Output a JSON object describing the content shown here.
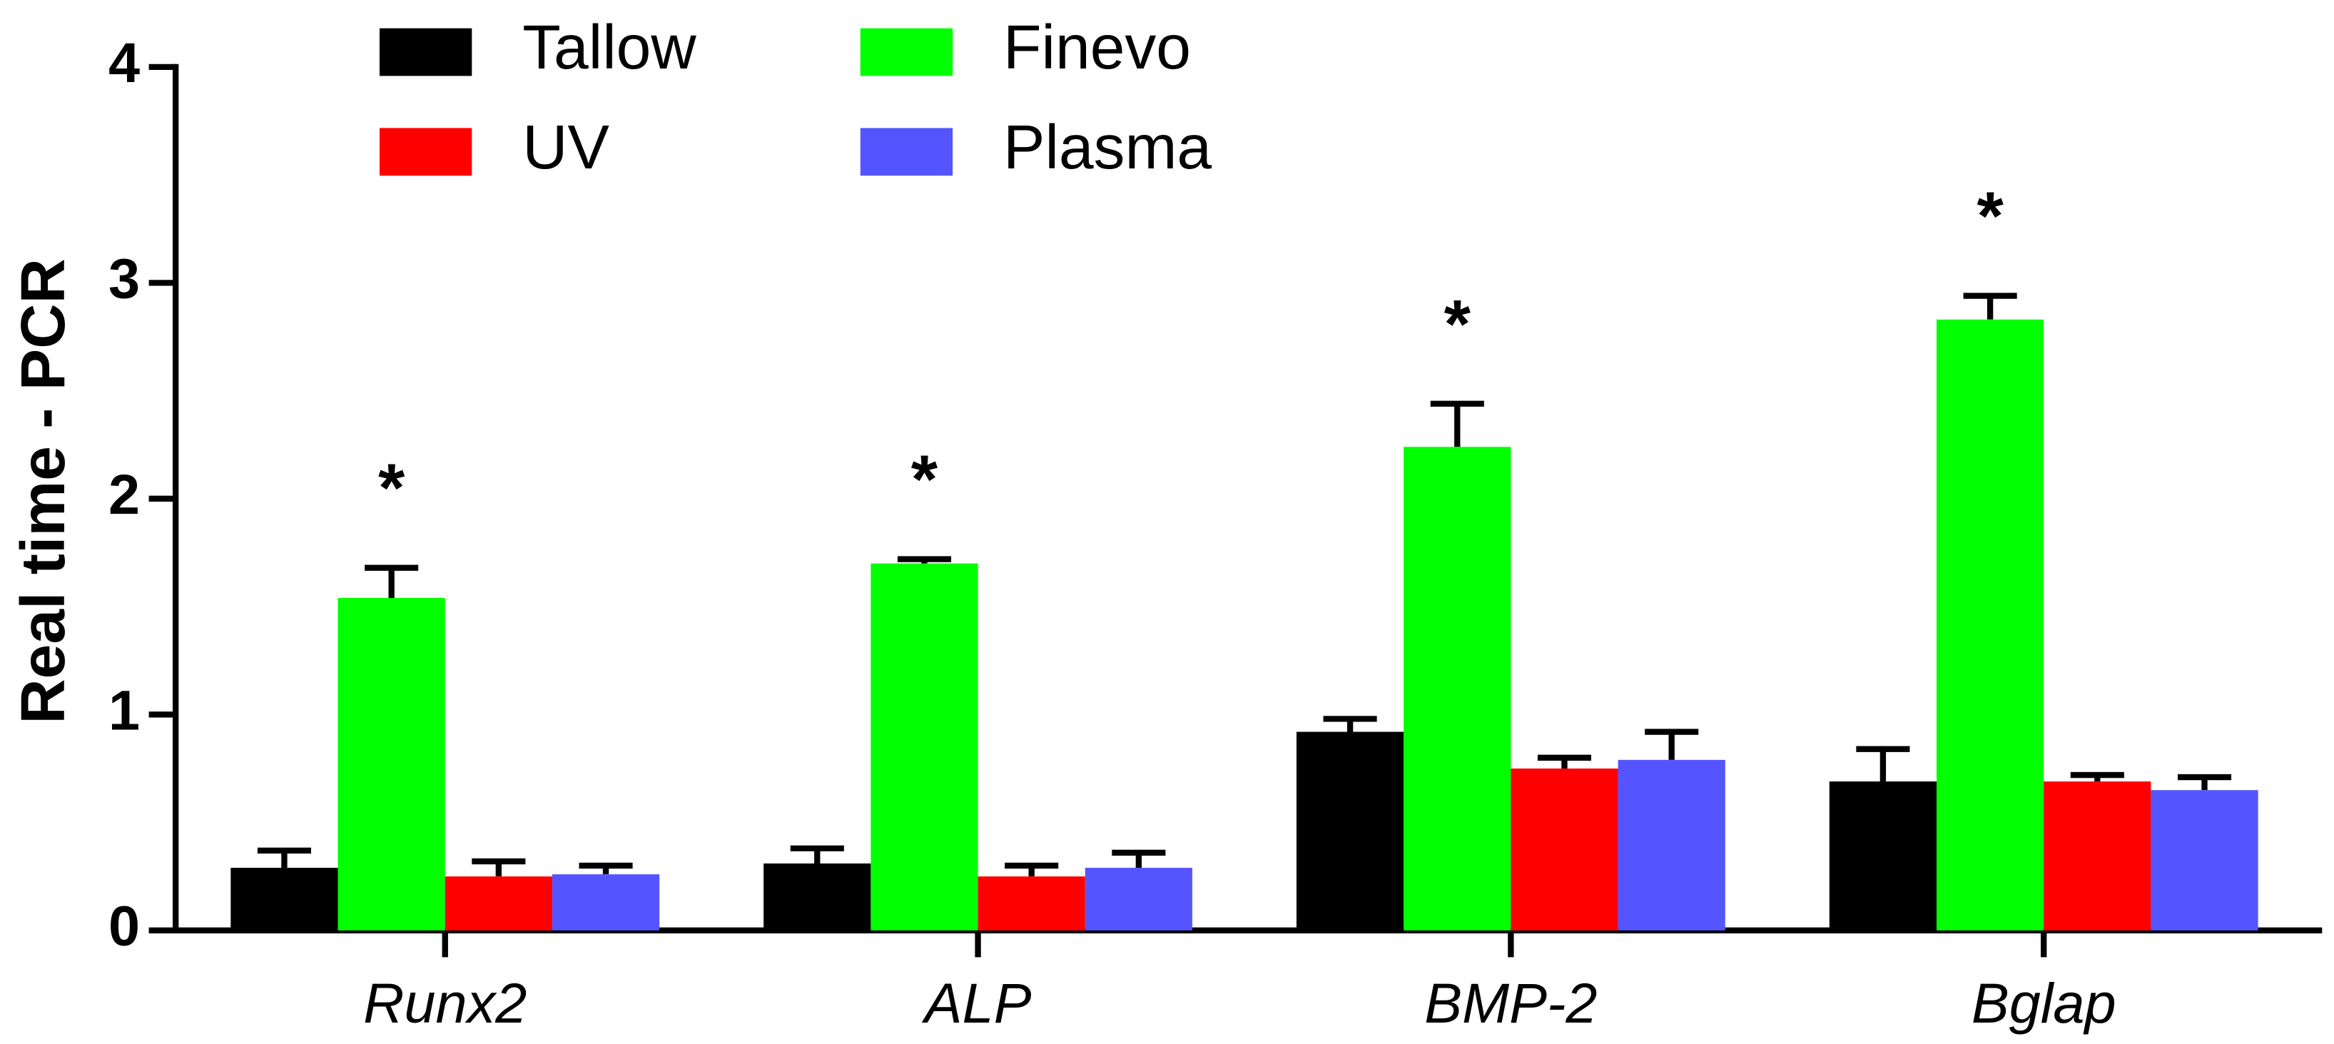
{
  "chart_data": {
    "type": "bar",
    "y_label": "Real time - PCR",
    "categories": [
      "Runx2",
      "ALP",
      "BMP-2",
      "Bglap"
    ],
    "series": [
      {
        "name": "Tallow",
        "color": "#000000",
        "values": [
          0.29,
          0.31,
          0.92,
          0.69
        ],
        "errors": [
          0.08,
          0.07,
          0.06,
          0.15
        ]
      },
      {
        "name": "Finevo",
        "color": "#00ff00",
        "values": [
          1.54,
          1.7,
          2.24,
          2.83
        ],
        "errors": [
          0.14,
          0.02,
          0.2,
          0.11
        ]
      },
      {
        "name": "UV",
        "color": "#ff0000",
        "values": [
          0.25,
          0.25,
          0.75,
          0.69
        ],
        "errors": [
          0.07,
          0.05,
          0.05,
          0.03
        ]
      },
      {
        "name": "Plasma",
        "color": "#5555ff",
        "values": [
          0.26,
          0.29,
          0.79,
          0.65
        ],
        "errors": [
          0.04,
          0.07,
          0.13,
          0.06
        ]
      }
    ],
    "annotations": [
      "*",
      "*",
      "*",
      "*"
    ],
    "annotation_series": "Finevo",
    "ylim": [
      0,
      4
    ],
    "yticks": [
      0,
      1,
      2,
      3,
      4
    ],
    "grid": false
  }
}
